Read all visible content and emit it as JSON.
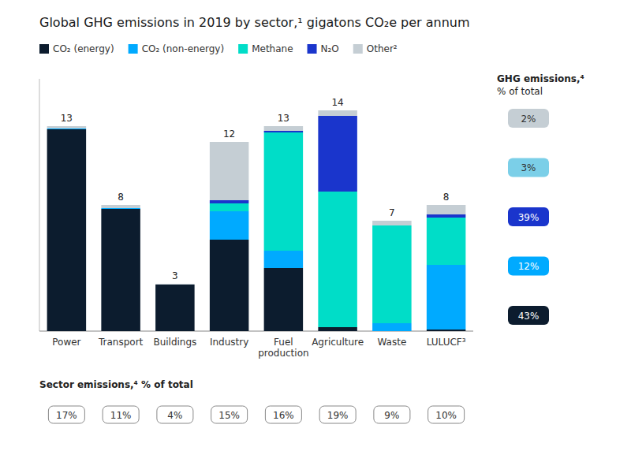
{
  "chart_data": {
    "type": "bar",
    "stacked": true,
    "title": "Global GHG emissions in 2019 by sector,¹ gigatons CO₂e per annum",
    "categories": [
      "Power",
      "Transport",
      "Buildings",
      "Industry",
      "Fuel\nproduction",
      "Agriculture",
      "Waste",
      "LULUCF³"
    ],
    "series": [
      {
        "name": "CO₂ (energy)",
        "color": "#0c1c2e",
        "values": [
          12.8,
          7.75,
          2.95,
          5.8,
          4.0,
          0.25,
          0.0,
          0.1
        ]
      },
      {
        "name": "CO₂ (non-energy)",
        "color": "#00aaff",
        "values": [
          0.05,
          0.05,
          0.0,
          1.8,
          1.1,
          0.0,
          0.5,
          4.1
        ]
      },
      {
        "name": "Methane",
        "color": "#00ddc8",
        "values": [
          0.0,
          0.0,
          0.0,
          0.5,
          7.5,
          8.6,
          6.2,
          3.0
        ]
      },
      {
        "name": "N₂O",
        "color": "#1a35cc",
        "values": [
          0.0,
          0.0,
          0.0,
          0.2,
          0.1,
          4.8,
          0.0,
          0.2
        ]
      },
      {
        "name": "Other²",
        "color": "#c5ced4",
        "values": [
          0.15,
          0.2,
          0.05,
          3.7,
          0.3,
          0.35,
          0.3,
          0.6
        ]
      }
    ],
    "ylim": [
      0,
      16.0
    ],
    "tick_labels": "x",
    "grid": false,
    "legend": "top",
    "totals": [
      13,
      8,
      3,
      12,
      13,
      14,
      7,
      8
    ],
    "sector_shares": {
      "title": "Sector emissions,⁴ % of total",
      "values": [
        17,
        11,
        4,
        15,
        16,
        19,
        9,
        10
      ],
      "value_labels": [
        "17%",
        "11%",
        "4%",
        "15%",
        "16%",
        "19%",
        "9%",
        "10%"
      ]
    },
    "ghg_shares": {
      "title_lines": [
        "GHG emissions,⁴",
        "% of total"
      ],
      "values": [
        2,
        3,
        39,
        12,
        43
      ],
      "value_labels": [
        "2%",
        "3%",
        "39%",
        "12%",
        "43%"
      ],
      "colors": [
        "#c5ced4",
        "#7bcfe8",
        "#1a35cc",
        "#00aaff",
        "#0c1c2e"
      ],
      "text_colors": [
        "#333333",
        "#333333",
        "#ffffff",
        "#ffffff",
        "#ffffff"
      ]
    }
  }
}
